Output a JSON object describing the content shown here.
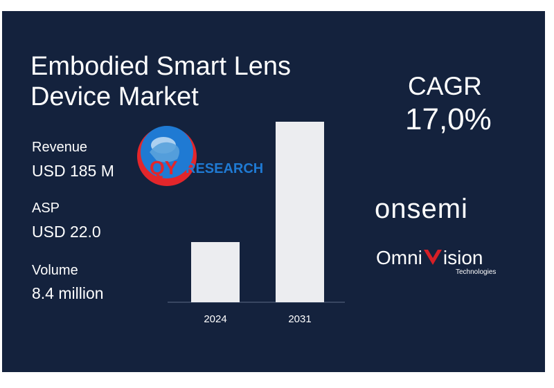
{
  "title_line1": "Embodied Smart Lens",
  "title_line2": "Device Market",
  "metrics": [
    {
      "label": "Revenue",
      "value": "USD 185 M"
    },
    {
      "label": "ASP",
      "value": "USD 22.0"
    },
    {
      "label": "Volume",
      "value": "8.4 million"
    }
  ],
  "cagr": {
    "label": "CAGR",
    "value": "17,0%"
  },
  "brands": {
    "onsemi": "onsemi",
    "omnivision_left": "Omni",
    "omnivision_right": "ision",
    "omnivision_sub": "Technologies"
  },
  "watermark": {
    "qy": "QY",
    "research": "RESEARCH"
  },
  "colors": {
    "background": "#14223d",
    "bar": "#ecedf0",
    "text": "#ffffff",
    "logo_red": "#e3262b",
    "logo_blue": "#1f7ad3"
  },
  "chart_data": {
    "type": "bar",
    "categories": [
      "2024",
      "2031"
    ],
    "values": [
      185,
      555
    ],
    "title": "",
    "xlabel": "",
    "ylabel": "",
    "ylim": [
      0,
      555
    ],
    "grid": false
  }
}
